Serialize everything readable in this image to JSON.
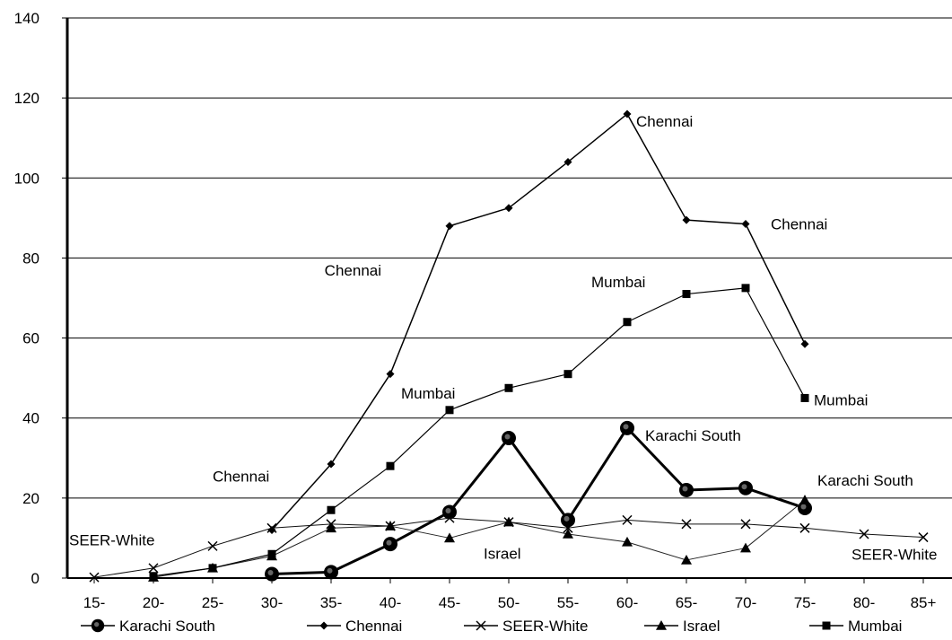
{
  "chart_data": {
    "type": "line",
    "title": "",
    "xlabel": "",
    "ylabel": "",
    "categories": [
      "15-",
      "20-",
      "25-",
      "30-",
      "35-",
      "40-",
      "45-",
      "50-",
      "55-",
      "60-",
      "65-",
      "70-",
      "75-",
      "80-",
      "85+"
    ],
    "ylim": [
      0,
      140
    ],
    "yticks": [
      "0",
      "20",
      "40",
      "60",
      "80",
      "100",
      "120",
      "140"
    ],
    "grid": "horizontal",
    "legend_position": "bottom",
    "series": [
      {
        "name": "Karachi South",
        "marker": "circle",
        "values": [
          null,
          null,
          null,
          1,
          1.5,
          8.5,
          16.5,
          35,
          14.5,
          37.5,
          22,
          22.5,
          17.5,
          null,
          null
        ]
      },
      {
        "name": "Chennai",
        "marker": "diamond",
        "values": [
          null,
          null,
          null,
          12,
          28.5,
          51,
          88,
          92.5,
          104,
          116,
          89.5,
          88.5,
          58.5,
          null,
          null
        ]
      },
      {
        "name": "SEER-White",
        "marker": "x",
        "values": [
          0.2,
          2.5,
          8,
          12.5,
          13.5,
          13,
          15,
          14,
          12.5,
          14.5,
          13.5,
          13.5,
          12.5,
          11,
          10.2
        ]
      },
      {
        "name": "Israel",
        "marker": "triangle",
        "values": [
          null,
          0.2,
          2.5,
          5.5,
          12.5,
          13,
          10,
          14,
          11,
          9,
          4.5,
          7.5,
          19.5,
          null,
          null
        ]
      },
      {
        "name": "Mumbai",
        "marker": "square",
        "values": [
          null,
          0.5,
          2.5,
          6,
          17,
          28,
          42,
          47.5,
          51,
          64,
          71,
          72.5,
          45,
          null,
          null
        ]
      }
    ],
    "annotations": [
      {
        "text": "Chennai",
        "x": "60-",
        "y": 116
      },
      {
        "text": "Chennai",
        "x": "70-",
        "y": 88.5
      },
      {
        "text": "Chennai",
        "x": "40-",
        "y": 77
      },
      {
        "text": "Chennai",
        "x": "30-",
        "y": 25
      },
      {
        "text": "Mumbai",
        "x": "60-",
        "y": 74
      },
      {
        "text": "Mumbai",
        "x": "75-",
        "y": 45
      },
      {
        "text": "Mumbai",
        "x": "40-",
        "y": 48
      },
      {
        "text": "Karachi South",
        "x": "60-",
        "y": 37.5
      },
      {
        "text": "Karachi South",
        "x": "75-",
        "y": 24.5
      },
      {
        "text": "SEER-White",
        "x": "15-",
        "y": 9.5
      },
      {
        "text": "SEER-White",
        "x": "80-",
        "y": 5.5
      },
      {
        "text": "Israel",
        "x": "50-",
        "y": 7.5
      }
    ]
  }
}
